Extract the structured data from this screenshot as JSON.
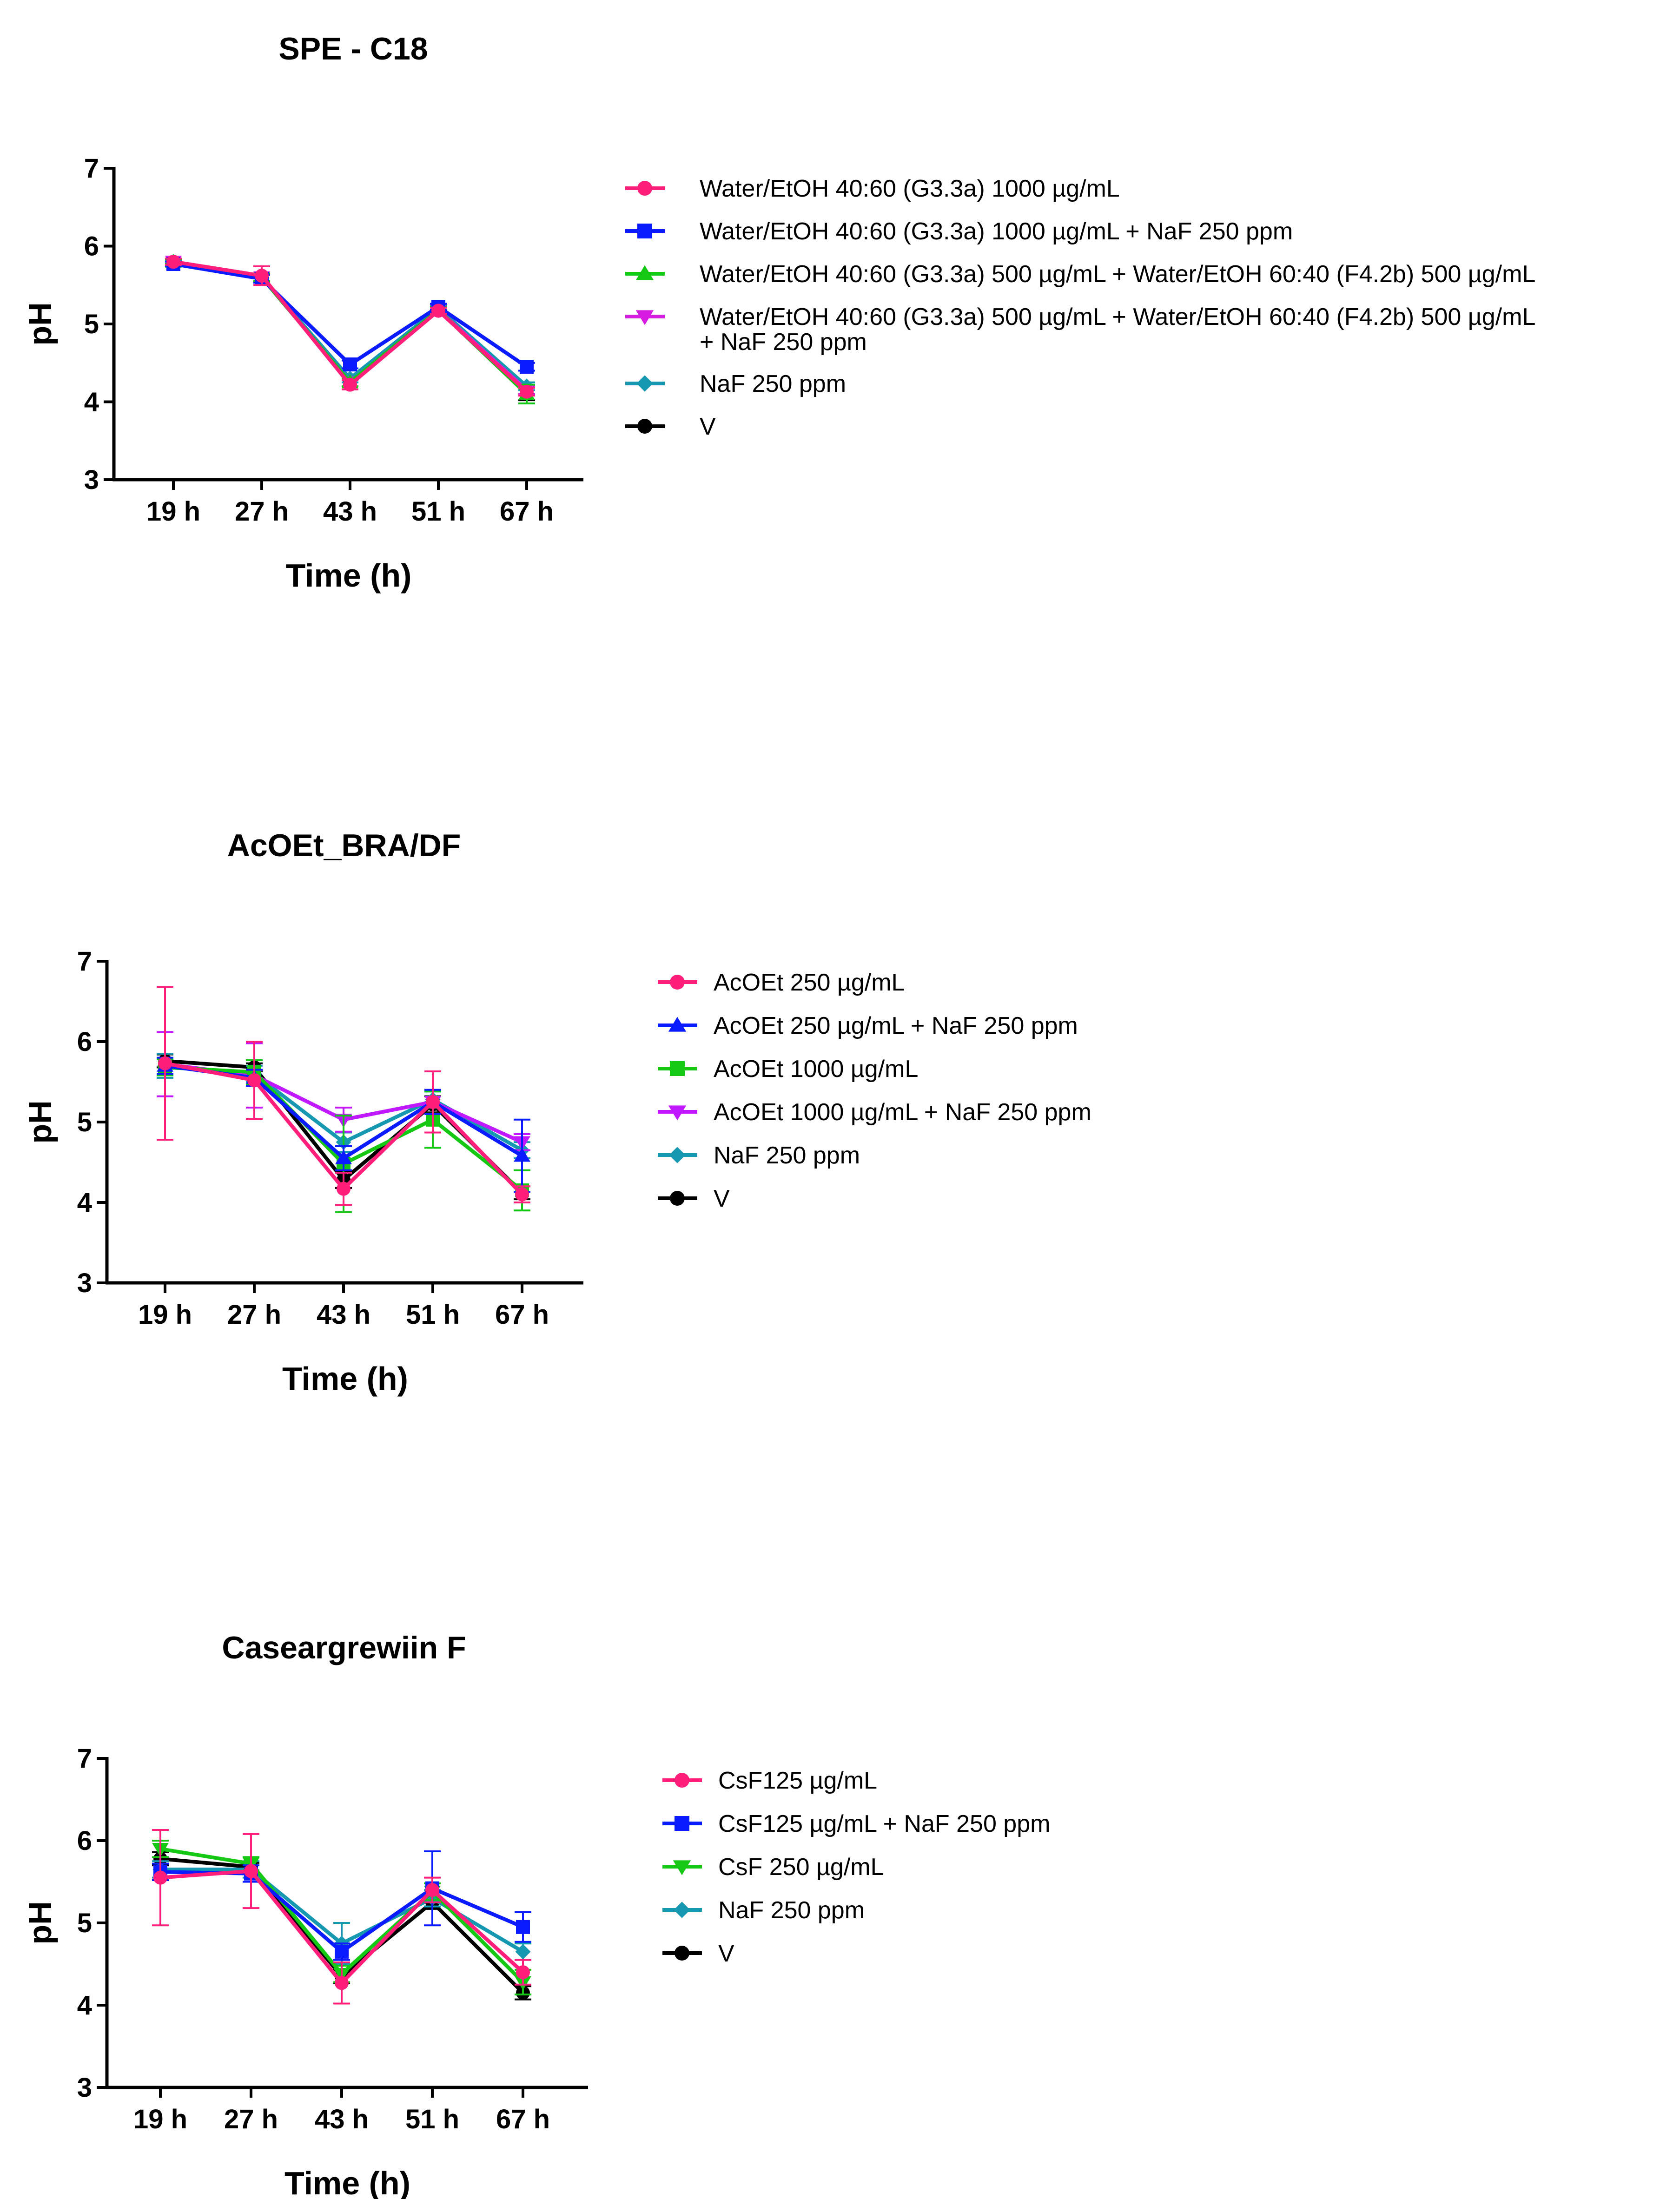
{
  "colors": {
    "pink": "#ff1f7a",
    "blue": "#0b1bff",
    "green": "#14c814",
    "magenta": "#d81be0",
    "violet": "#c018ff",
    "teal": "#1698b0",
    "black": "#000000"
  },
  "chart_data": [
    {
      "type": "line",
      "title": "SPE - C18",
      "xlabel": "Time (h)",
      "ylabel": "pH",
      "ylim": [
        3,
        7
      ],
      "yticks": [
        "3",
        "4",
        "5",
        "6",
        "7"
      ],
      "categories": [
        "19 h",
        "27 h",
        "43 h",
        "51 h",
        "67 h"
      ],
      "series": [
        {
          "name": "V",
          "color": "#000000",
          "marker": "circle",
          "values": [
            5.78,
            5.6,
            4.25,
            5.18,
            4.1
          ],
          "errors": [
            0.03,
            0.05,
            0.05,
            0.04,
            0.08
          ]
        },
        {
          "name": "NaF 250 ppm",
          "color": "#1698b0",
          "marker": "diamond",
          "values": [
            5.78,
            5.6,
            4.3,
            5.2,
            4.2
          ],
          "errors": [
            0.03,
            0.05,
            0.05,
            0.04,
            0.05
          ]
        },
        {
          "name": "Water/EtOH 40:60  (G3.3a) 500 µg/mL + Water/EtOH 60:40 (F4.2b) 500 µg/mL\n+ NaF 250 ppm",
          "color": "#d81be0",
          "marker": "triangle-down",
          "values": [
            5.8,
            5.6,
            4.25,
            5.18,
            4.15
          ],
          "errors": [
            0.03,
            0.05,
            0.05,
            0.04,
            0.05
          ]
        },
        {
          "name": "Water/EtOH 40:60  (G3.3a) 500 µg/mL + Water/EtOH 60:40 (F4.2b) 500 µg/mL",
          "color": "#14c814",
          "marker": "triangle-up",
          "values": [
            5.8,
            5.6,
            4.25,
            5.18,
            4.1
          ],
          "errors": [
            0.03,
            0.05,
            0.05,
            0.04,
            0.12
          ]
        },
        {
          "name": "Water/EtOH 40:60  (G3.3a) 1000 µg/mL  + NaF 250 ppm",
          "color": "#0b1bff",
          "marker": "square",
          "values": [
            5.77,
            5.58,
            4.48,
            5.22,
            4.45
          ],
          "errors": [
            0.03,
            0.05,
            0.05,
            0.04,
            0.05
          ]
        },
        {
          "name": "Water/EtOH 40:60  (G3.3a) 1000 µg/mL",
          "color": "#ff1f7a",
          "marker": "circle",
          "values": [
            5.8,
            5.62,
            4.22,
            5.17,
            4.13
          ],
          "errors": [
            0.04,
            0.12,
            0.06,
            0.04,
            0.05
          ]
        }
      ],
      "legend": [
        {
          "label": "Water/EtOH 40:60  (G3.3a) 1000 µg/mL",
          "color": "#ff1f7a",
          "marker": "circle"
        },
        {
          "label": "Water/EtOH 40:60  (G3.3a) 1000 µg/mL  + NaF 250 ppm",
          "color": "#0b1bff",
          "marker": "square"
        },
        {
          "label": "Water/EtOH 40:60  (G3.3a) 500 µg/mL + Water/EtOH 60:40 (F4.2b) 500 µg/mL",
          "color": "#14c814",
          "marker": "triangle-up"
        },
        {
          "label": "Water/EtOH 40:60  (G3.3a) 500 µg/mL + Water/EtOH 60:40 (F4.2b) 500 µg/mL\n+ NaF 250 ppm",
          "color": "#d81be0",
          "marker": "triangle-down"
        },
        {
          "label": "NaF 250 ppm",
          "color": "#1698b0",
          "marker": "diamond"
        },
        {
          "label": "V",
          "color": "#000000",
          "marker": "circle"
        }
      ]
    },
    {
      "type": "line",
      "title": "AcOEt_BRA/DF",
      "xlabel": "Time (h)",
      "ylabel": "pH",
      "ylim": [
        3,
        7
      ],
      "yticks": [
        "3",
        "4",
        "5",
        "6",
        "7"
      ],
      "categories": [
        "19 h",
        "27 h",
        "43 h",
        "51 h",
        "67 h"
      ],
      "series": [
        {
          "name": "V",
          "color": "#000000",
          "marker": "circle",
          "values": [
            5.76,
            5.68,
            4.28,
            5.22,
            4.12
          ],
          "errors": [
            0.08,
            0.05,
            0.1,
            0.1,
            0.08
          ]
        },
        {
          "name": "NaF 250 ppm",
          "color": "#1698b0",
          "marker": "diamond",
          "values": [
            5.7,
            5.6,
            4.75,
            5.28,
            4.65
          ],
          "errors": [
            0.15,
            0.1,
            0.12,
            0.1,
            0.1
          ]
        },
        {
          "name": "AcOEt 1000 µg/mL + NaF 250 ppm",
          "color": "#c018ff",
          "marker": "triangle-down",
          "values": [
            5.72,
            5.58,
            5.03,
            5.25,
            4.75
          ],
          "errors": [
            0.4,
            0.4,
            0.15,
            0.15,
            0.1
          ]
        },
        {
          "name": "AcOEt 1000 µg/mL",
          "color": "#14c814",
          "marker": "square",
          "values": [
            5.68,
            5.62,
            4.48,
            5.03,
            4.15
          ],
          "errors": [
            0.1,
            0.15,
            0.6,
            0.35,
            0.25
          ]
        },
        {
          "name": "AcOEt 250  µg/mL + NaF 250 ppm",
          "color": "#0b1bff",
          "marker": "triangle-up",
          "values": [
            5.7,
            5.55,
            4.55,
            5.25,
            4.58
          ],
          "errors": [
            0.1,
            0.1,
            0.15,
            0.15,
            0.45
          ]
        },
        {
          "name": "AcOEt 250  µg/mL",
          "color": "#ff1f7a",
          "marker": "circle",
          "values": [
            5.73,
            5.52,
            4.17,
            5.25,
            4.1
          ],
          "errors": [
            0.95,
            0.48,
            0.2,
            0.38,
            0.1
          ]
        }
      ],
      "legend": [
        {
          "label": "AcOEt 250  µg/mL",
          "color": "#ff1f7a",
          "marker": "circle"
        },
        {
          "label": "AcOEt 250  µg/mL + NaF 250 ppm",
          "color": "#0b1bff",
          "marker": "triangle-up"
        },
        {
          "label": "AcOEt 1000 µg/mL",
          "color": "#14c814",
          "marker": "square"
        },
        {
          "label": "AcOEt 1000 µg/mL + NaF 250 ppm",
          "color": "#c018ff",
          "marker": "triangle-down"
        },
        {
          "label": "NaF 250 ppm",
          "color": "#1698b0",
          "marker": "diamond"
        },
        {
          "label": "V",
          "color": "#000000",
          "marker": "circle"
        }
      ]
    },
    {
      "type": "line",
      "title": "Caseargrewiin F",
      "xlabel": "Time (h)",
      "ylabel": "pH",
      "ylim": [
        3,
        7
      ],
      "yticks": [
        "3",
        "4",
        "5",
        "6",
        "7"
      ],
      "categories": [
        "19 h",
        "27 h",
        "43 h",
        "51 h",
        "67 h"
      ],
      "series": [
        {
          "name": "V",
          "color": "#000000",
          "marker": "circle",
          "values": [
            5.78,
            5.68,
            4.35,
            5.25,
            4.15
          ],
          "errors": [
            0.08,
            0.05,
            0.08,
            0.08,
            0.08
          ]
        },
        {
          "name": "NaF 250 ppm",
          "color": "#1698b0",
          "marker": "diamond",
          "values": [
            5.65,
            5.65,
            4.75,
            5.3,
            4.65
          ],
          "errors": [
            0.1,
            0.1,
            0.25,
            0.1,
            0.1
          ]
        },
        {
          "name": "CsF 250 µg/mL",
          "color": "#14c814",
          "marker": "triangle-down",
          "values": [
            5.9,
            5.72,
            4.38,
            5.38,
            4.28
          ],
          "errors": [
            0.1,
            0.08,
            0.1,
            0.1,
            0.15
          ]
        },
        {
          "name": "CsF125 µg/mL + NaF 250 ppm",
          "color": "#0b1bff",
          "marker": "square",
          "values": [
            5.62,
            5.6,
            4.65,
            5.42,
            4.95
          ],
          "errors": [
            0.1,
            0.1,
            0.1,
            0.45,
            0.18
          ]
        },
        {
          "name": "CsF125 µg/mL",
          "color": "#ff1f7a",
          "marker": "circle",
          "values": [
            5.55,
            5.63,
            4.27,
            5.4,
            4.4
          ],
          "errors": [
            0.58,
            0.45,
            0.25,
            0.15,
            0.15
          ]
        }
      ],
      "legend": [
        {
          "label": "CsF125 µg/mL",
          "color": "#ff1f7a",
          "marker": "circle"
        },
        {
          "label": "CsF125 µg/mL + NaF 250 ppm",
          "color": "#0b1bff",
          "marker": "square"
        },
        {
          "label": "CsF 250 µg/mL",
          "color": "#14c814",
          "marker": "triangle-down"
        },
        {
          "label": "NaF 250 ppm",
          "color": "#1698b0",
          "marker": "diamond"
        },
        {
          "label": "V",
          "color": "#000000",
          "marker": "circle"
        }
      ]
    }
  ]
}
